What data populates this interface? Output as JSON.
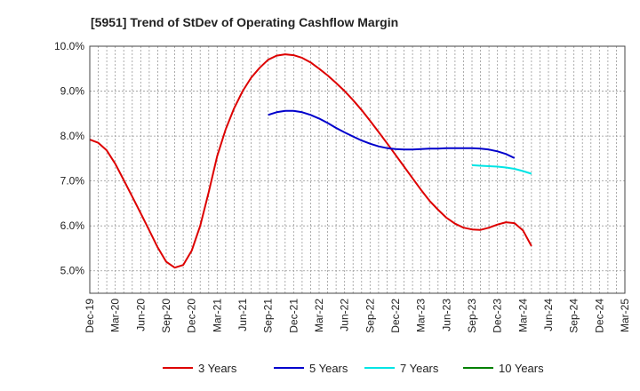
{
  "chart_data": {
    "type": "line",
    "title": "[5951]  Trend of StDev of Operating Cashflow Margin",
    "xlabel": "",
    "ylabel": "",
    "x_ticks": [
      "Dec-19",
      "Mar-20",
      "Jun-20",
      "Sep-20",
      "Dec-20",
      "Mar-21",
      "Jun-21",
      "Sep-21",
      "Dec-21",
      "Mar-22",
      "Jun-22",
      "Sep-22",
      "Dec-22",
      "Mar-23",
      "Jun-23",
      "Sep-23",
      "Dec-23",
      "Mar-24",
      "Jun-24",
      "Sep-24",
      "Dec-24",
      "Mar-25"
    ],
    "y_ticks": [
      "5.0%",
      "6.0%",
      "7.0%",
      "8.0%",
      "9.0%",
      "10.0%"
    ],
    "ylim": [
      4.5,
      10.0
    ],
    "grid": true,
    "legend_position": "bottom",
    "series": [
      {
        "name": "3 Years",
        "color": "#dd0000",
        "values": [
          7.92,
          7.85,
          7.68,
          7.38,
          7.02,
          6.65,
          6.28,
          5.9,
          5.52,
          5.2,
          5.07,
          5.13,
          5.45,
          6.0,
          6.75,
          7.55,
          8.15,
          8.62,
          9.0,
          9.3,
          9.52,
          9.7,
          9.79,
          9.82,
          9.8,
          9.74,
          9.64,
          9.5,
          9.35,
          9.18,
          9.0,
          8.8,
          8.58,
          8.34,
          8.09,
          7.84,
          7.58,
          7.32,
          7.06,
          6.8,
          6.56,
          6.36,
          6.18,
          6.05,
          5.96,
          5.92,
          5.91,
          5.96,
          6.03,
          6.08,
          6.06,
          5.9,
          5.55
        ]
      },
      {
        "name": "5 Years",
        "color": "#0000cc",
        "start_index": 21,
        "values": [
          8.47,
          8.53,
          8.56,
          8.56,
          8.53,
          8.47,
          8.39,
          8.29,
          8.18,
          8.08,
          7.99,
          7.9,
          7.83,
          7.77,
          7.73,
          7.71,
          7.7,
          7.7,
          7.71,
          7.72,
          7.72,
          7.73,
          7.73,
          7.73,
          7.73,
          7.72,
          7.7,
          7.66,
          7.6,
          7.51
        ]
      },
      {
        "name": "7 Years",
        "color": "#00e5e5",
        "start_index": 45,
        "values": [
          7.35,
          7.34,
          7.33,
          7.32,
          7.3,
          7.27,
          7.22,
          7.16
        ]
      },
      {
        "name": "10 Years",
        "color": "#008000",
        "values": []
      }
    ]
  }
}
